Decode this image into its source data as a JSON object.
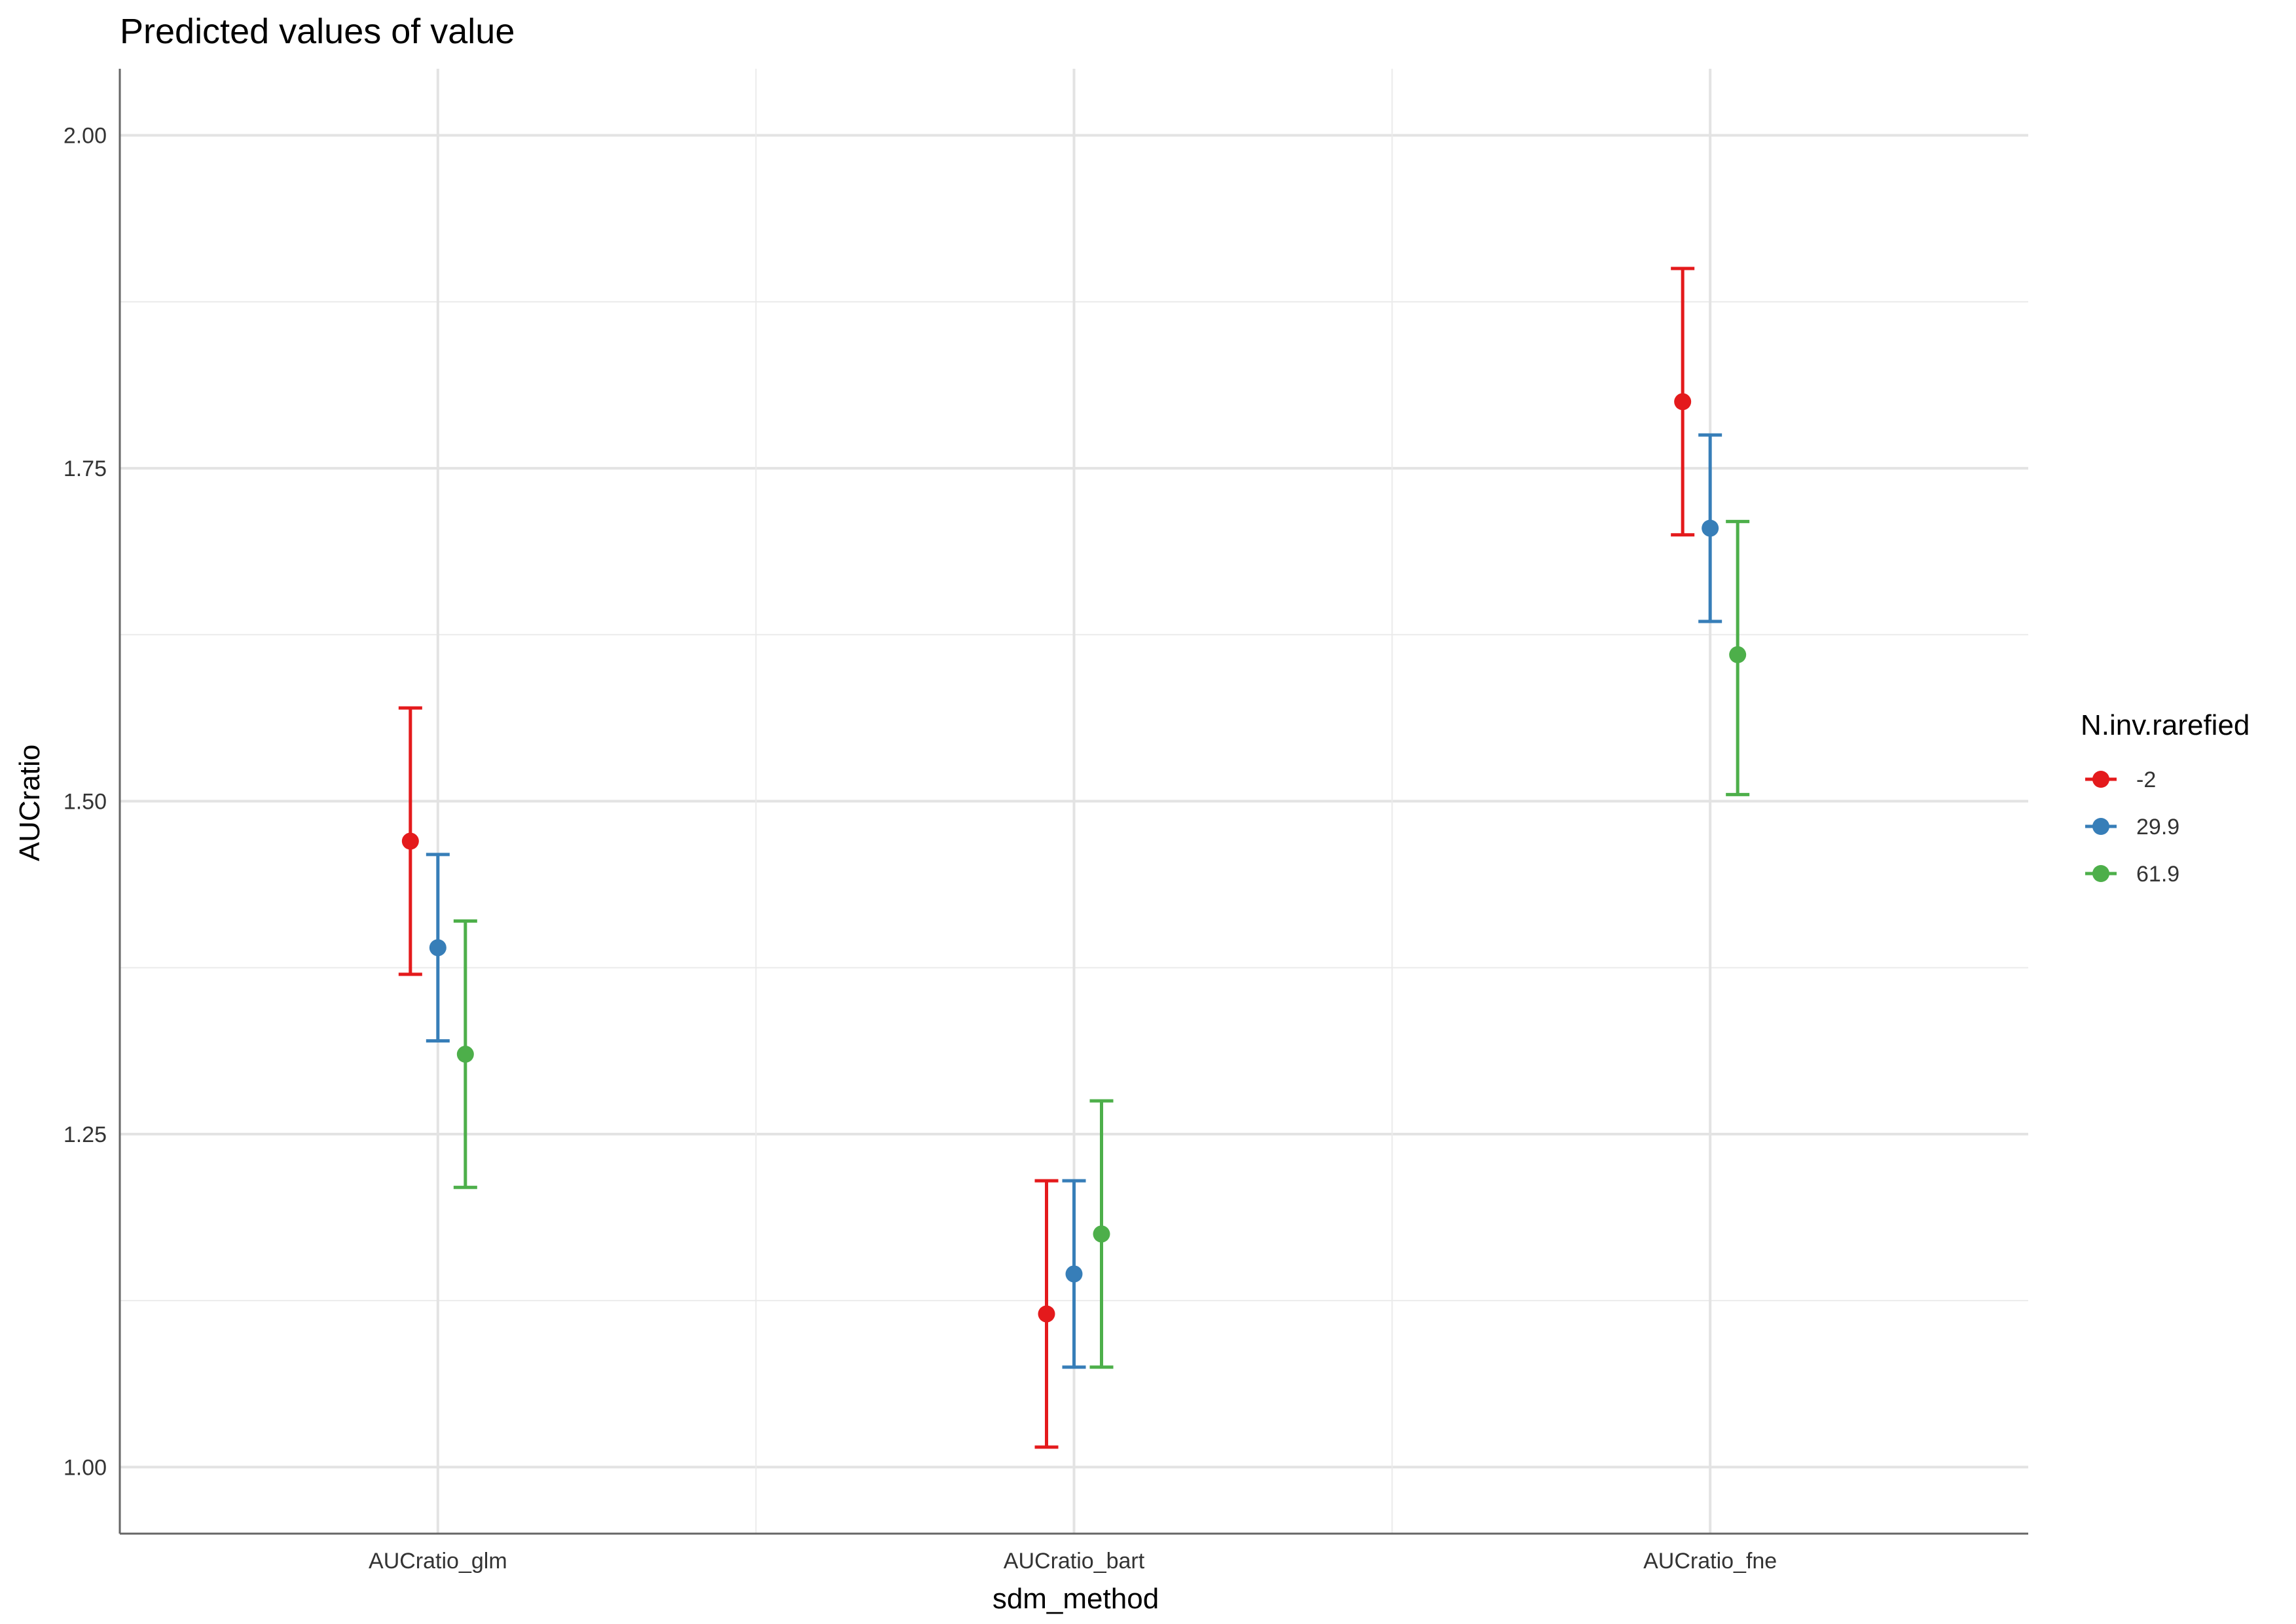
{
  "chart_data": {
    "type": "scatter",
    "title": "Predicted values of value",
    "xlabel": "sdm_method",
    "ylabel": "AUCratio",
    "categories": [
      "AUCratio_glm",
      "AUCratio_bart",
      "AUCratio_fne"
    ],
    "ylim": [
      0.95,
      2.05
    ],
    "yticks": [
      "1.00",
      "1.25",
      "1.50",
      "1.75",
      "2.00"
    ],
    "grid": true,
    "legend": {
      "title": "N.inv.rarefied",
      "position": "right"
    },
    "series": [
      {
        "name": "-2",
        "color": "#E41A1C",
        "values": [
          1.47,
          1.115,
          1.8
        ],
        "lower": [
          1.37,
          1.015,
          1.7
        ],
        "upper": [
          1.57,
          1.215,
          1.9
        ]
      },
      {
        "name": "29.9",
        "color": "#377EB8",
        "values": [
          1.39,
          1.145,
          1.705
        ],
        "lower": [
          1.32,
          1.075,
          1.635
        ],
        "upper": [
          1.46,
          1.215,
          1.775
        ]
      },
      {
        "name": "61.9",
        "color": "#4DAF4A",
        "values": [
          1.31,
          1.175,
          1.61
        ],
        "lower": [
          1.21,
          1.075,
          1.505
        ],
        "upper": [
          1.41,
          1.275,
          1.71
        ]
      }
    ]
  }
}
